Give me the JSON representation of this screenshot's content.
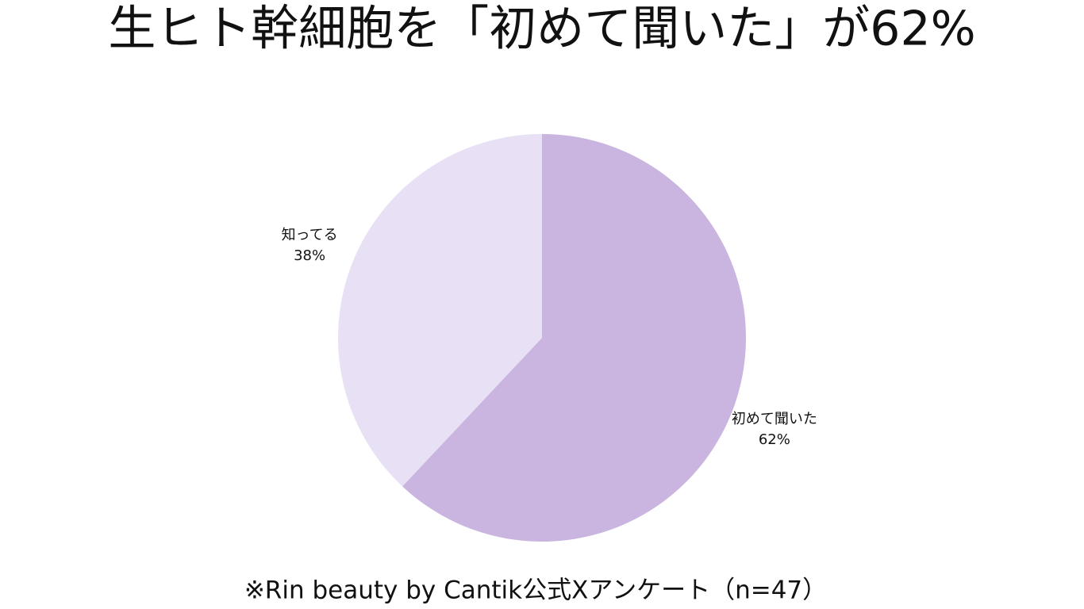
{
  "chart_data": {
    "type": "pie",
    "title": "生ヒト幹細胞を「初めて聞いた」が62%",
    "categories": [
      "初めて聞いた",
      "知ってる"
    ],
    "values": [
      62,
      38
    ],
    "value_labels": [
      "62%",
      "38%"
    ],
    "colors": [
      "#c9b5df",
      "#e8e0f5"
    ],
    "footnote": "※Rin beauty by Cantik公式Xアンケート（n=47）"
  }
}
